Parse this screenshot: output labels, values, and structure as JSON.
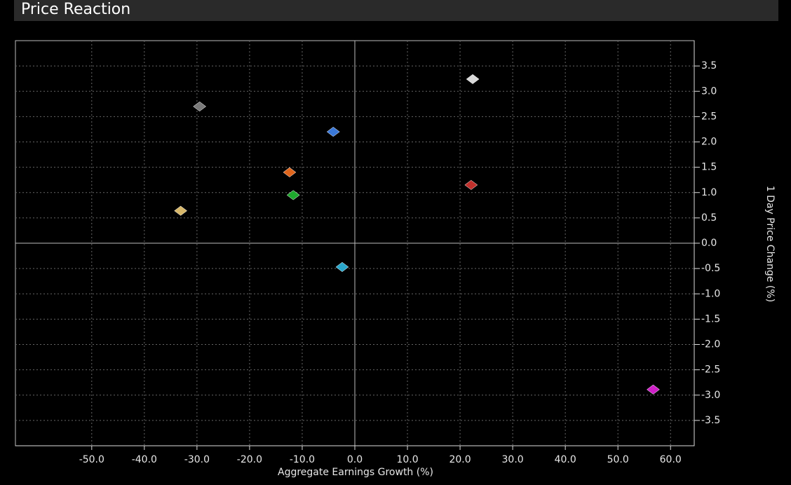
{
  "chart_data": {
    "type": "scatter",
    "title": "Price Reaction",
    "x_label": "Aggregate Earnings Growth (%)",
    "y_label": "1 Day Price Change (%)",
    "x": [
      22.4,
      -29.5,
      -4.1,
      -12.4,
      22.1,
      -11.7,
      -33.1,
      -2.4,
      56.7
    ],
    "values": [
      3.24,
      2.7,
      2.2,
      1.4,
      1.15,
      0.95,
      0.64,
      -0.47,
      -2.89
    ],
    "colors": [
      "#d9d9d9",
      "#7a7a7a",
      "#3a78d8",
      "#e0651c",
      "#c0302c",
      "#1fa82e",
      "#d8b86a",
      "#2aa8cc",
      "#d020c8"
    ],
    "xlim": [
      -64.5,
      64.5
    ],
    "ylim": [
      -4,
      4
    ],
    "xticks": [
      {
        "value": -50,
        "label": "-50.0"
      },
      {
        "value": -40,
        "label": "-40.0"
      },
      {
        "value": -30,
        "label": "-30.0"
      },
      {
        "value": -20,
        "label": "-20.0"
      },
      {
        "value": -10,
        "label": "-10.0"
      },
      {
        "value": 0,
        "label": "0.0"
      },
      {
        "value": 10,
        "label": "10.0"
      },
      {
        "value": 20,
        "label": "20.0"
      },
      {
        "value": 30,
        "label": "30.0"
      },
      {
        "value": 40,
        "label": "40.0"
      },
      {
        "value": 50,
        "label": "50.0"
      },
      {
        "value": 60,
        "label": "60.0"
      }
    ],
    "yticks": [
      3.5,
      {
        "value": 3,
        "label": "3.0"
      },
      2.5,
      {
        "value": 2,
        "label": "2.0"
      },
      1.5,
      {
        "value": 1,
        "label": "1.0"
      },
      0.5,
      {
        "value": 0,
        "label": "0.0"
      },
      -0.5,
      {
        "value": -1,
        "label": "-1.0"
      },
      -1.5,
      {
        "value": -2,
        "label": "-2.0"
      },
      -2.5,
      {
        "value": -3,
        "label": "-3.0"
      },
      -3.5
    ],
    "grid": true
  }
}
